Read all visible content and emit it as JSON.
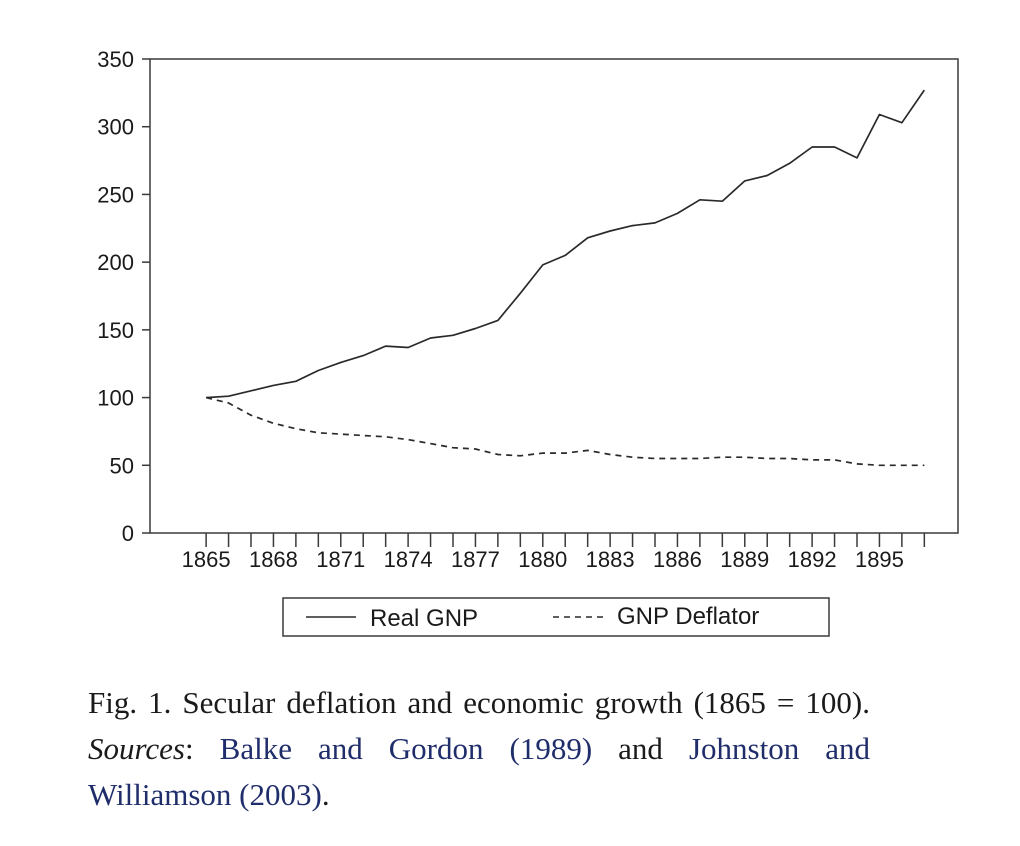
{
  "chart_data": {
    "type": "line",
    "x": [
      1865,
      1866,
      1867,
      1868,
      1869,
      1870,
      1871,
      1872,
      1873,
      1874,
      1875,
      1876,
      1877,
      1878,
      1879,
      1880,
      1881,
      1882,
      1883,
      1884,
      1885,
      1886,
      1887,
      1888,
      1889,
      1890,
      1891,
      1892,
      1893,
      1894,
      1895,
      1896,
      1897
    ],
    "xticks": [
      "1865",
      "1868",
      "1871",
      "1874",
      "1877",
      "1880",
      "1883",
      "1886",
      "1889",
      "1892",
      "1895"
    ],
    "yticks": [
      "0",
      "50",
      "100",
      "150",
      "200",
      "250",
      "300",
      "350"
    ],
    "xlim": [
      1862.5,
      1898.5
    ],
    "ylim": [
      0,
      350
    ],
    "grid": false,
    "legend_position": "bottom",
    "series": [
      {
        "name": "Real GNP",
        "style": "solid",
        "values": [
          100,
          101,
          105,
          109,
          112,
          120,
          126,
          131,
          138,
          137,
          144,
          146,
          151,
          157,
          177,
          198,
          205,
          218,
          223,
          227,
          229,
          236,
          246,
          245,
          260,
          264,
          273,
          285,
          285,
          277,
          309,
          303,
          327
        ]
      },
      {
        "name": "GNP Deflator",
        "style": "dashed",
        "values": [
          100,
          96,
          87,
          81,
          77,
          74,
          73,
          72,
          71,
          69,
          66,
          63,
          62,
          58,
          57,
          59,
          59,
          61,
          58,
          56,
          55,
          55,
          55,
          56,
          56,
          55,
          55,
          54,
          54,
          51,
          50,
          50,
          50
        ]
      }
    ]
  },
  "caption": {
    "part1": "Fig. 1. Secular deflation and economic growth (1865 = 100). ",
    "sources_label": "Sources",
    "colon": ": ",
    "ref1": "Balke and Gordon (1989)",
    "and": " and ",
    "ref2": "Johnston and Williamson (2003)",
    "end": "."
  },
  "colors": {
    "line": "#2a2a2a",
    "reference": "#1f2d6b"
  }
}
